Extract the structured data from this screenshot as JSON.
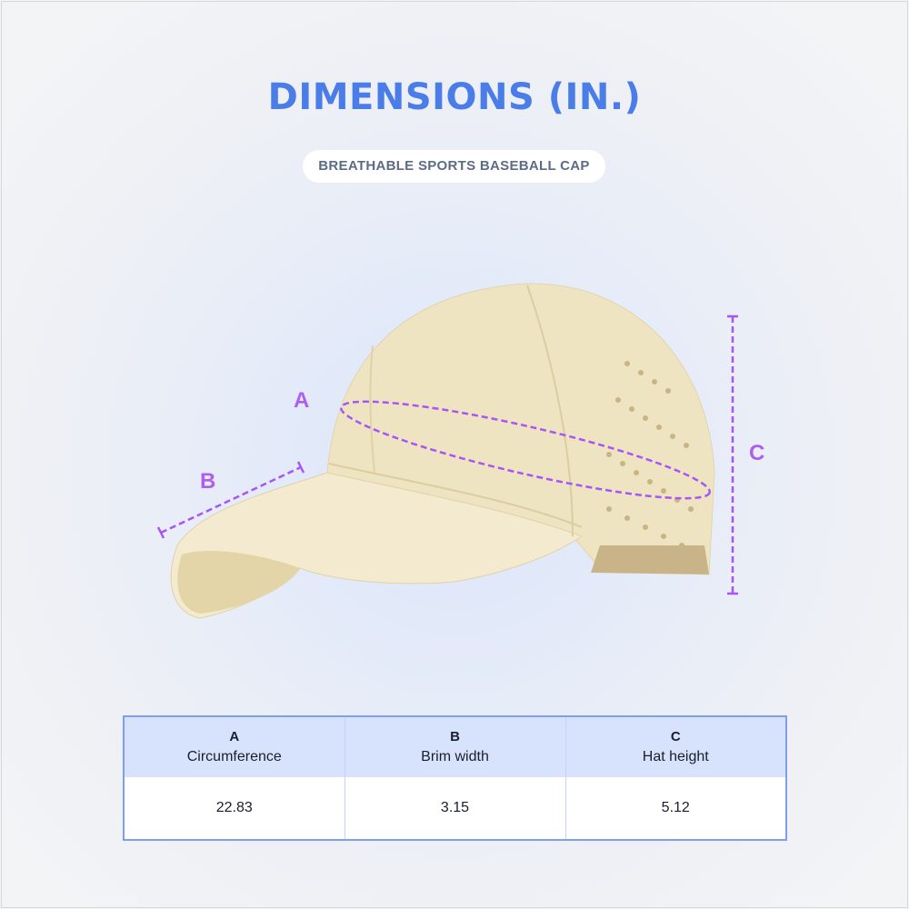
{
  "title": "DIMENSIONS (IN.)",
  "subtitle": "BREATHABLE SPORTS BASEBALL CAP",
  "labels": {
    "a": "A",
    "b": "B",
    "c": "C"
  },
  "colors": {
    "accent": "#4a7de8",
    "measure": "#a855f7",
    "cap": "#f0e6c6"
  },
  "table": {
    "headers": [
      {
        "letter": "A",
        "name": "Circumference"
      },
      {
        "letter": "B",
        "name": "Brim width"
      },
      {
        "letter": "C",
        "name": "Hat height"
      }
    ],
    "values": [
      "22.83",
      "3.15",
      "5.12"
    ]
  }
}
